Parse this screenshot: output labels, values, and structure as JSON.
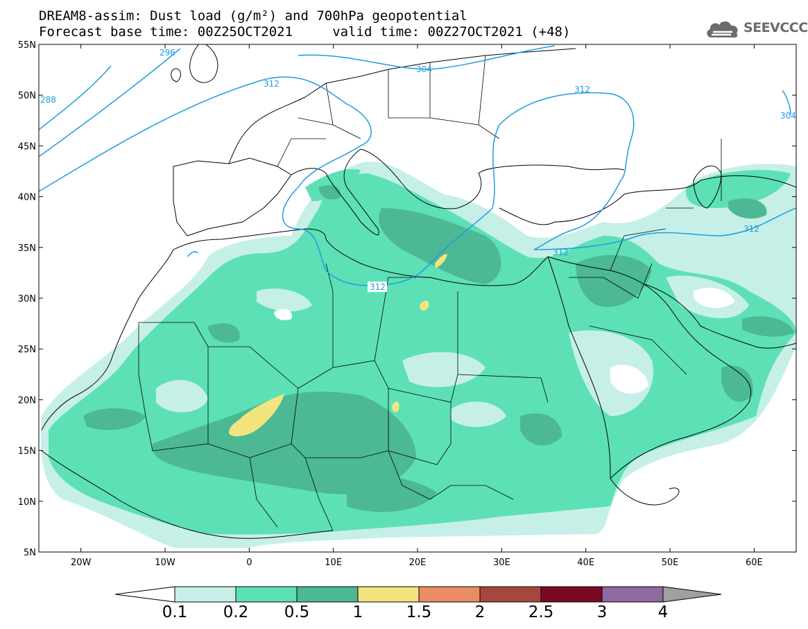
{
  "title": {
    "line1": "DREAM8-assim: Dust load (g/m²) and 700hPa geopotential",
    "line2": "Forecast base time: 00Z25OCT2021     valid time: 00Z27OCT2021 (+48)"
  },
  "logo": {
    "text": "SEEVCCC",
    "icon": "cloud-icon"
  },
  "map": {
    "lat_ticks": [
      "55N",
      "50N",
      "45N",
      "40N",
      "35N",
      "30N",
      "25N",
      "20N",
      "15N",
      "10N",
      "5N"
    ],
    "lon_ticks": [
      "20W",
      "10W",
      "0",
      "10E",
      "20E",
      "30E",
      "40E",
      "50E",
      "60E"
    ],
    "lat_range": [
      5,
      55
    ],
    "lon_range": [
      -25,
      65
    ],
    "colors": {
      "ocean": "#ffffff",
      "coast": "#000000",
      "contour": "#1e9be0",
      "dust_0_1": "#c6f0e7",
      "dust_0_2": "#5de0b6",
      "dust_0_5": "#4cb894",
      "dust_1": "#f2e57e"
    },
    "contour_labels": [
      "288",
      "296",
      "312",
      "304",
      "312",
      "304",
      "312",
      "312",
      "312"
    ]
  },
  "colorbar": {
    "labels": [
      "0.1",
      "0.2",
      "0.5",
      "1",
      "1.5",
      "2",
      "2.5",
      "3",
      "4"
    ],
    "colors": [
      "#c6f0e7",
      "#5de0b6",
      "#4cb894",
      "#f2e57e",
      "#ea8c64",
      "#a4483e",
      "#7a0a24",
      "#8e6aa0"
    ],
    "under_color": "#ffffff",
    "over_color": "#a0a0a0"
  }
}
